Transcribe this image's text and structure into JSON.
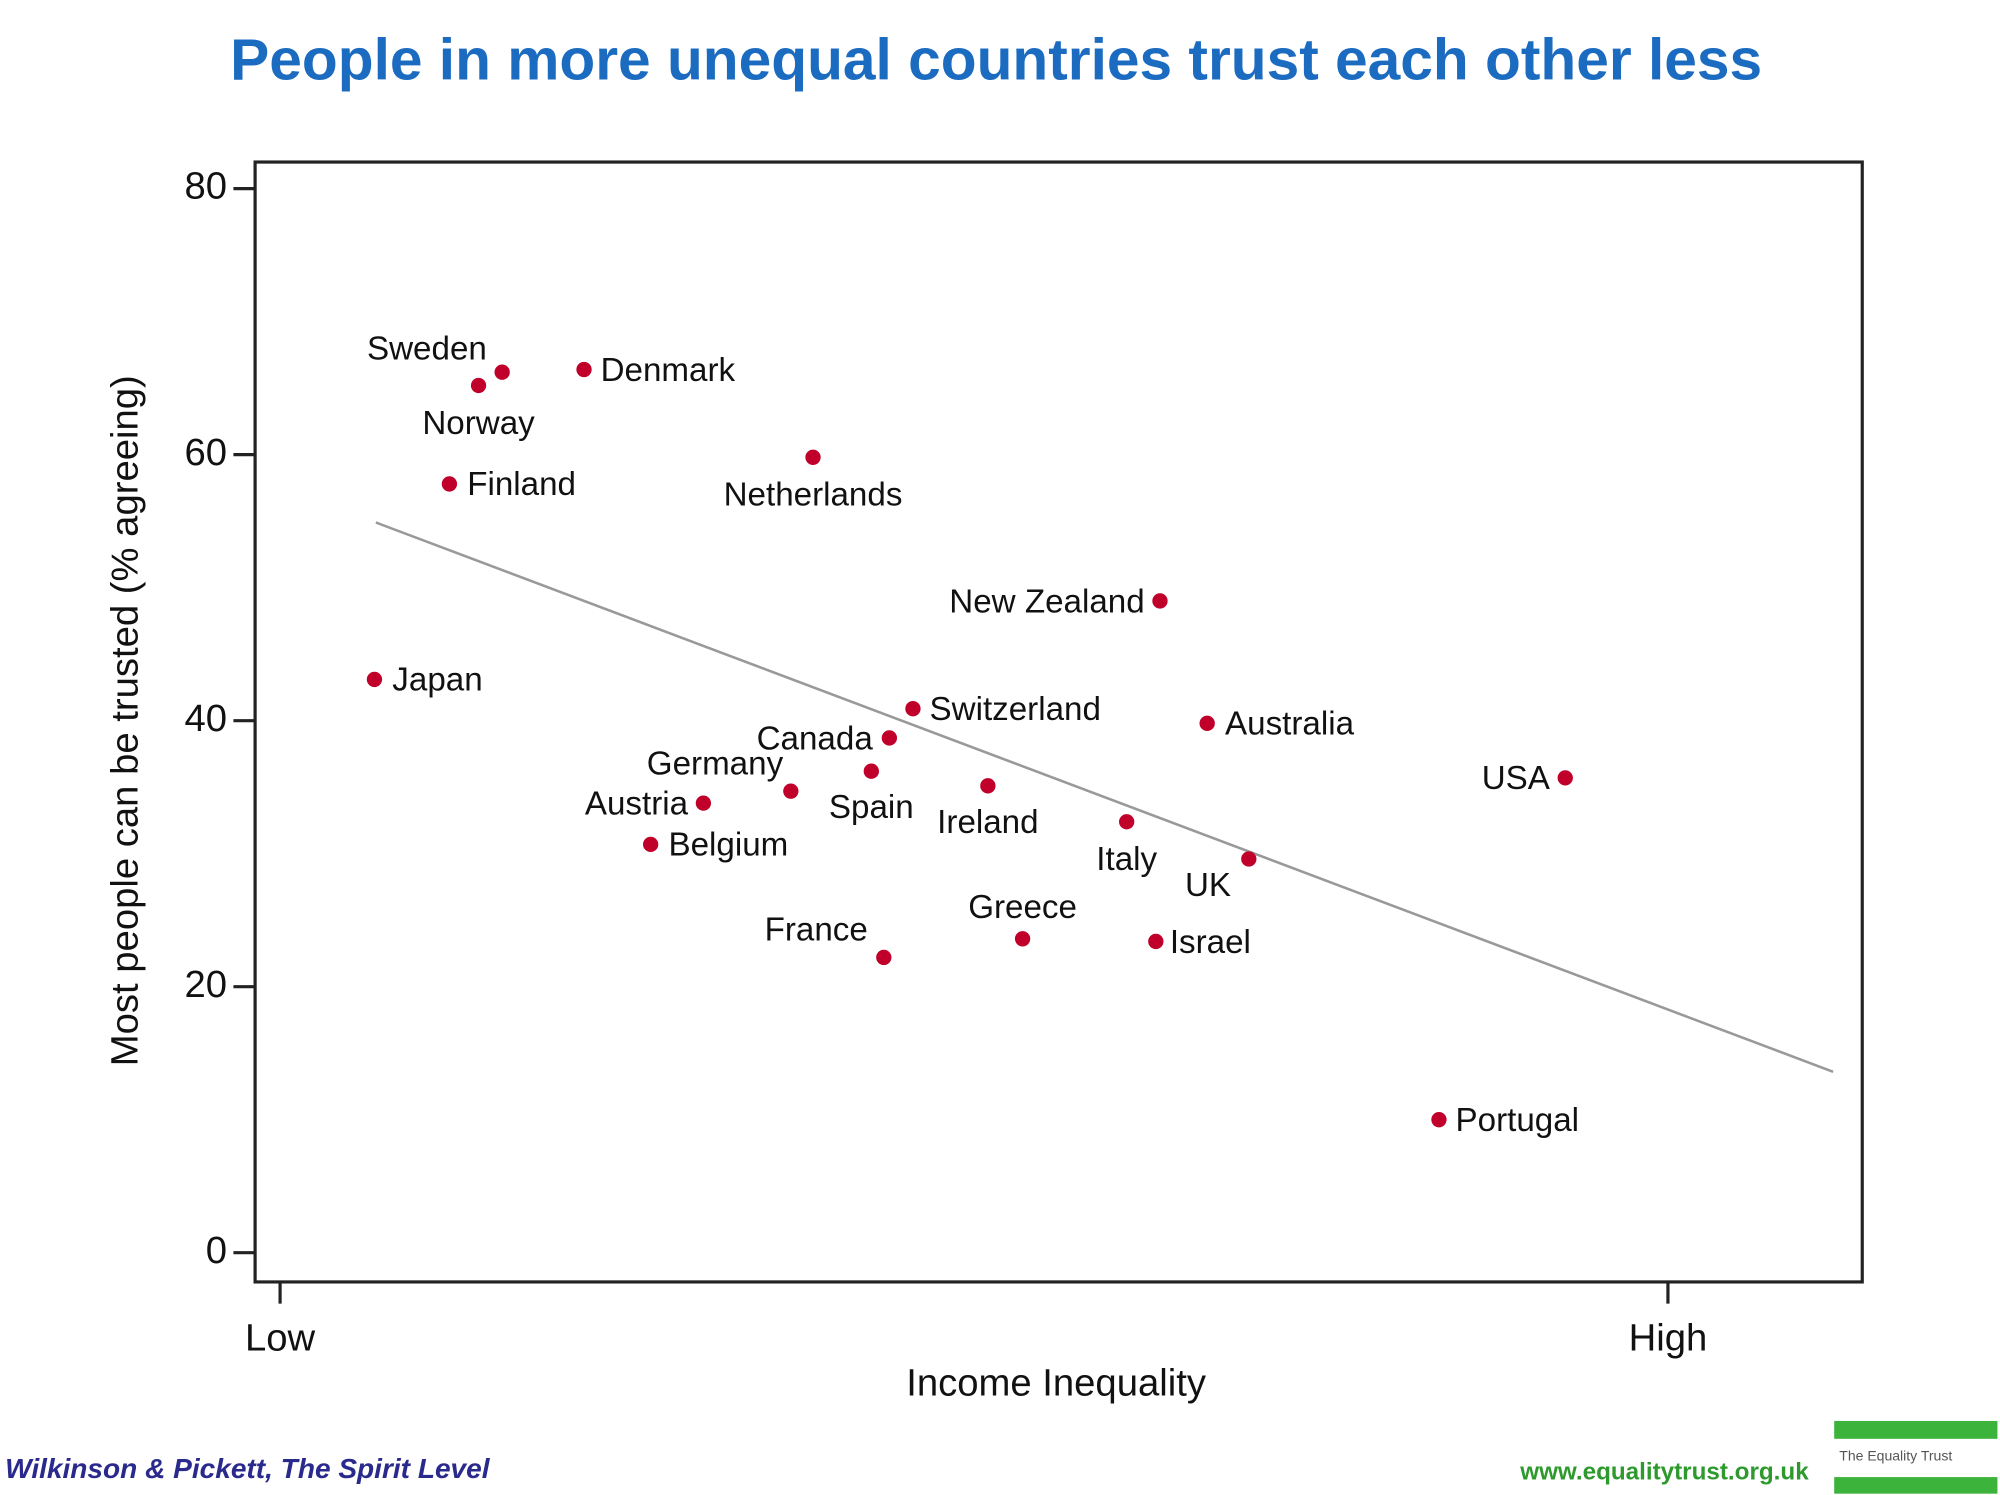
{
  "chart_data": {
    "type": "scatter",
    "title": "People in more unequal countries trust each other less",
    "xlabel": "Income Inequality",
    "ylabel": "Most people can be trusted (% agreeing)",
    "labels": [
      "Sweden",
      "Norway",
      "Denmark",
      "Finland",
      "Netherlands",
      "New Zealand",
      "Japan",
      "Switzerland",
      "Australia",
      "Canada",
      "USA",
      "Spain",
      "Germany",
      "Ireland",
      "Austria",
      "Italy",
      "Belgium",
      "UK",
      "Greece",
      "Israel",
      "France",
      "Portugal"
    ],
    "x": [
      0.16,
      0.143,
      0.219,
      0.122,
      0.384,
      0.634,
      0.068,
      0.456,
      0.668,
      0.439,
      0.926,
      0.426,
      0.368,
      0.51,
      0.305,
      0.61,
      0.267,
      0.698,
      0.535,
      0.631,
      0.435,
      0.835
    ],
    "y": [
      66.2,
      65.2,
      66.4,
      57.8,
      59.8,
      49.0,
      43.1,
      40.9,
      39.8,
      38.7,
      35.7,
      36.2,
      34.7,
      35.1,
      33.8,
      32.4,
      30.7,
      29.6,
      23.6,
      23.4,
      22.2,
      10.0
    ],
    "color": "#c0002a",
    "trendline": {
      "x": [
        0.069,
        1.119
      ],
      "y": [
        54.9,
        13.6
      ],
      "color": "#999999"
    },
    "xlim": [
      -0.018,
      1.14
    ],
    "ylim": [
      -2.2,
      82.0
    ],
    "xticks": [
      {
        "value": 0,
        "label": "Low"
      },
      {
        "value": 1,
        "label": "High"
      }
    ],
    "yticks": [
      0,
      20,
      40,
      60,
      80
    ]
  },
  "footer": {
    "source": "Wilkinson & Pickett, The Spirit Level",
    "website": "www.equalitytrust.org.uk",
    "logo": "The Equality Trust"
  }
}
